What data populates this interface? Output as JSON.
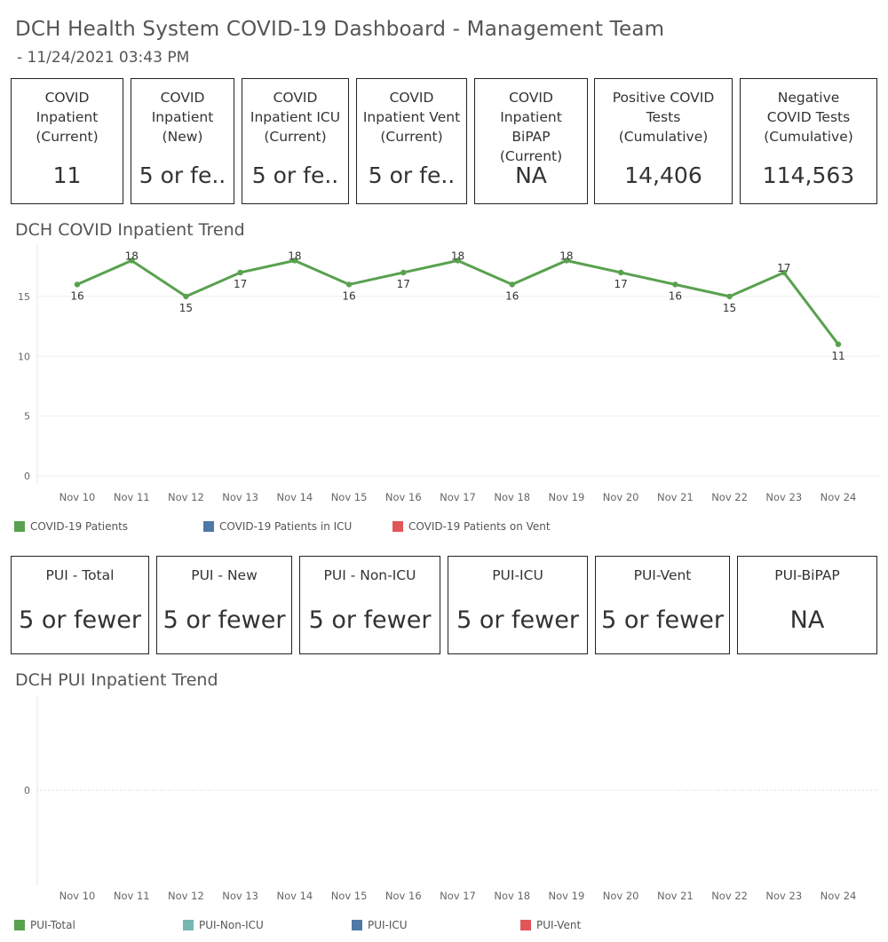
{
  "header": {
    "title": "DCH Health System COVID-19 Dashboard - Management Team",
    "timestamp": "- 11/24/2021 03:43 PM"
  },
  "covid_kpis": [
    {
      "label": "COVID Inpatient (Current)",
      "value": "11"
    },
    {
      "label": "COVID Inpatient (New)",
      "value": "5 or fe.."
    },
    {
      "label": "COVID Inpatient ICU (Current)",
      "value": "5 or fe.."
    },
    {
      "label": "COVID Inpatient Vent (Current)",
      "value": "5 or fe.."
    },
    {
      "label": "COVID Inpatient BiPAP (Current)",
      "value": "NA"
    },
    {
      "label": "Positive COVID Tests (Cumulative)",
      "value": "14,406"
    },
    {
      "label": "Negative COVID Tests (Cumulative)",
      "value": "114,563"
    }
  ],
  "pui_kpis": [
    {
      "label": "PUI - Total",
      "value": "5 or fewer"
    },
    {
      "label": "PUI - New",
      "value": "5 or fewer"
    },
    {
      "label": "PUI - Non-ICU",
      "value": "5 or fewer"
    },
    {
      "label": "PUI-ICU",
      "value": "5 or fewer"
    },
    {
      "label": "PUI-Vent",
      "value": "5 or fewer"
    },
    {
      "label": "PUI-BiPAP",
      "value": "NA"
    }
  ],
  "chart_data": [
    {
      "type": "line",
      "title": "DCH COVID Inpatient Trend",
      "categories": [
        "Nov 10",
        "Nov 11",
        "Nov 12",
        "Nov 13",
        "Nov 14",
        "Nov 15",
        "Nov 16",
        "Nov 17",
        "Nov 18",
        "Nov 19",
        "Nov 20",
        "Nov 21",
        "Nov 22",
        "Nov 23",
        "Nov 24"
      ],
      "series": [
        {
          "name": "COVID-19 Patients",
          "color": "#59a14f",
          "values": [
            16,
            18,
            15,
            17,
            18,
            16,
            17,
            18,
            16,
            18,
            17,
            16,
            15,
            17,
            11
          ]
        }
      ],
      "legend": [
        {
          "name": "COVID-19 Patients",
          "color": "#59a14f"
        },
        {
          "name": "COVID-19 Patients in ICU",
          "color": "#4e79a7"
        },
        {
          "name": "COVID-19 Patients on Vent",
          "color": "#e15759"
        }
      ],
      "data_labels": true,
      "yticks": [
        0,
        5,
        10,
        15
      ],
      "ylim": [
        0,
        19
      ],
      "grid": true,
      "legend_position": "bottom-left"
    },
    {
      "type": "line",
      "title": "DCH PUI Inpatient Trend",
      "categories": [
        "Nov 10",
        "Nov 11",
        "Nov 12",
        "Nov 13",
        "Nov 14",
        "Nov 15",
        "Nov 16",
        "Nov 17",
        "Nov 18",
        "Nov 19",
        "Nov 20",
        "Nov 21",
        "Nov 22",
        "Nov 23",
        "Nov 24"
      ],
      "series": [],
      "legend": [
        {
          "name": "PUI-Total",
          "color": "#59a14f"
        },
        {
          "name": "PUI-Non-ICU",
          "color": "#76b7b2"
        },
        {
          "name": "PUI-ICU",
          "color": "#4e79a7"
        },
        {
          "name": "PUI-Vent",
          "color": "#e15759"
        }
      ],
      "yticks": [
        0
      ],
      "ylim": [
        -1,
        1
      ],
      "grid": true,
      "legend_position": "bottom-left"
    }
  ]
}
